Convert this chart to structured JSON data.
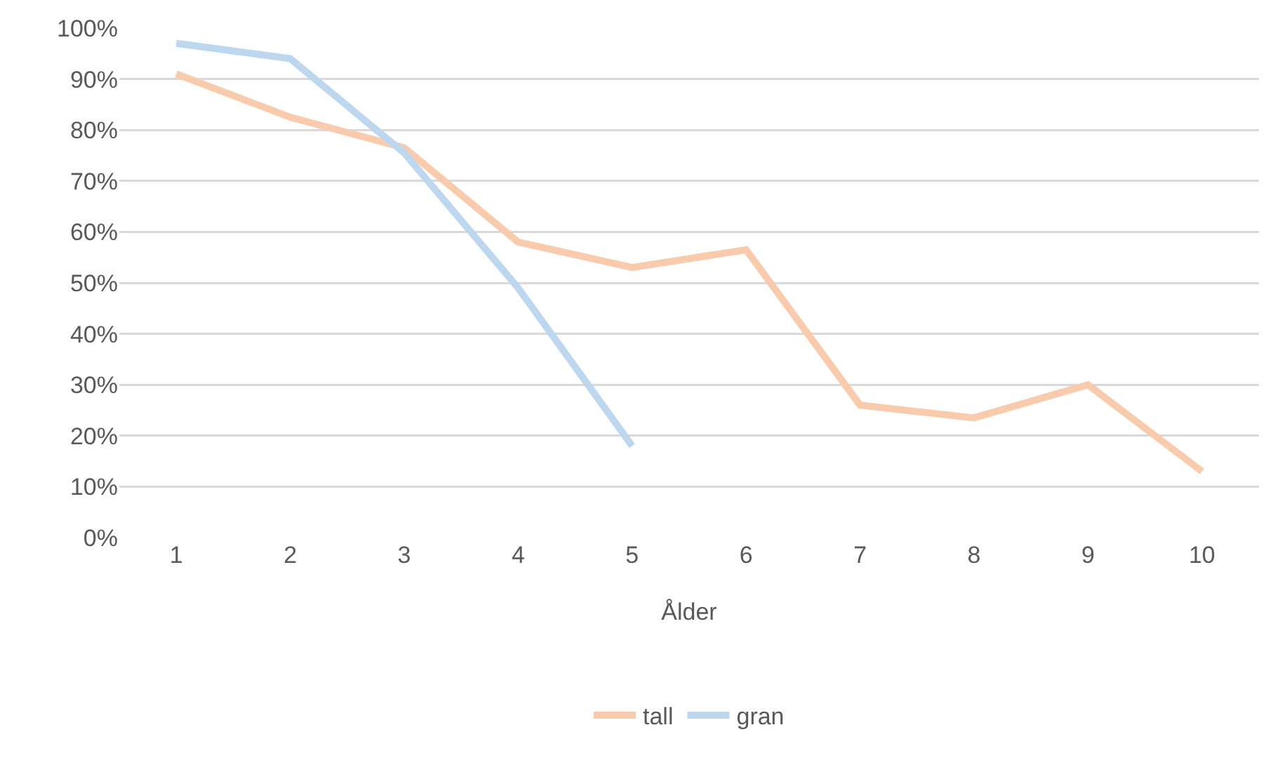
{
  "chart_data": {
    "type": "line",
    "xlabel": "Ålder",
    "categories": [
      "1",
      "2",
      "3",
      "4",
      "5",
      "6",
      "7",
      "8",
      "9",
      "10"
    ],
    "series": [
      {
        "name": "tall",
        "color": "#f8cbad",
        "values": [
          91,
          82.5,
          76.5,
          58,
          53,
          56.5,
          26,
          23.5,
          30,
          13
        ]
      },
      {
        "name": "gran",
        "color": "#bdd7ee",
        "values": [
          97,
          94,
          75.5,
          49,
          18,
          null,
          null,
          null,
          null,
          null
        ]
      }
    ],
    "ylim": [
      0,
      100
    ],
    "yticks": [
      {
        "value": 0,
        "label": "0%"
      },
      {
        "value": 10,
        "label": "10%"
      },
      {
        "value": 20,
        "label": "20%"
      },
      {
        "value": 30,
        "label": "30%"
      },
      {
        "value": 40,
        "label": "40%"
      },
      {
        "value": 50,
        "label": "50%"
      },
      {
        "value": 60,
        "label": "60%"
      },
      {
        "value": 70,
        "label": "70%"
      },
      {
        "value": 80,
        "label": "80%"
      },
      {
        "value": 90,
        "label": "90%"
      },
      {
        "value": 100,
        "label": "100%"
      }
    ],
    "grid": "y",
    "legend": "bottom",
    "marker": "none",
    "line_style": "solid"
  }
}
